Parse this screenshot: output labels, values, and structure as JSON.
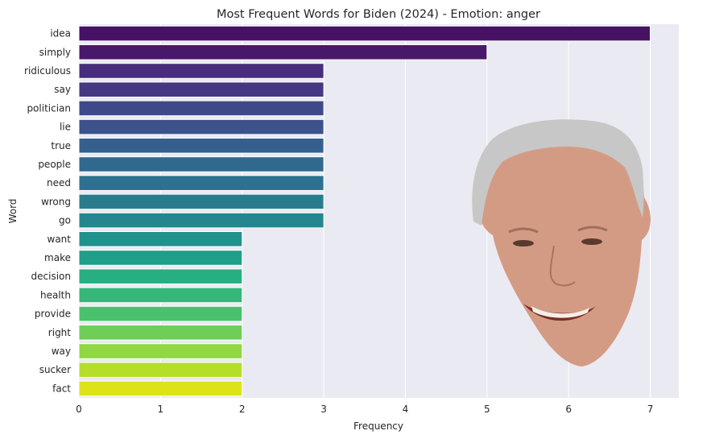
{
  "chart_data": {
    "type": "bar",
    "orientation": "horizontal",
    "title": "Most Frequent Words for Biden (2024) - Emotion: anger",
    "xlabel": "Frequency",
    "ylabel": "Word",
    "categories": [
      "idea",
      "simply",
      "ridiculous",
      "say",
      "politician",
      "lie",
      "true",
      "people",
      "need",
      "wrong",
      "go",
      "want",
      "make",
      "decision",
      "health",
      "provide",
      "right",
      "way",
      "sucker",
      "fact"
    ],
    "values": [
      7,
      5,
      3,
      3,
      3,
      3,
      3,
      3,
      3,
      3,
      3,
      2,
      2,
      2,
      2,
      2,
      2,
      2,
      2,
      2
    ],
    "xlim": [
      0,
      7.35
    ],
    "xticks": [
      0,
      1,
      2,
      3,
      4,
      5,
      6,
      7
    ],
    "grid": true,
    "palette": "viridis",
    "colors": [
      "#471164",
      "#48186a",
      "#472d7b",
      "#453781",
      "#3e4989",
      "#3b528b",
      "#355f8d",
      "#31688e",
      "#2c728e",
      "#287c8e",
      "#24868e",
      "#21918c",
      "#1f9e89",
      "#28ae80",
      "#35b779",
      "#4ac16d",
      "#6ece58",
      "#90d743",
      "#b5de2b",
      "#dde318"
    ],
    "background": "#eaeaf2",
    "overlay_image": "face-photo"
  }
}
